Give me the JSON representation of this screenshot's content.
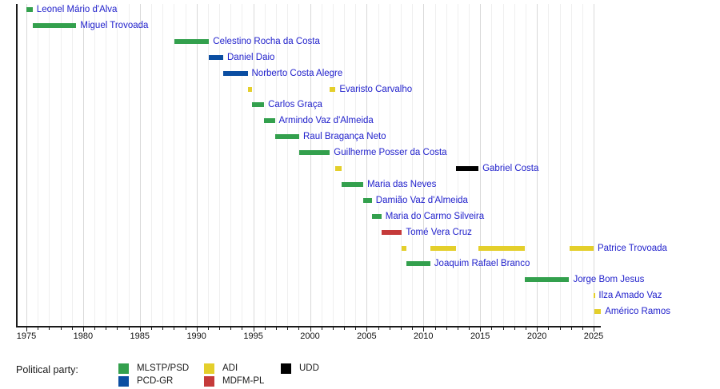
{
  "chart_data": {
    "type": "timeline",
    "title": "",
    "x_axis": {
      "start_year": 1975,
      "end_year": 2025,
      "minor_tick_interval": 1,
      "major_tick_interval": 5,
      "tick_labels": [
        "1975",
        "1980",
        "1985",
        "1990",
        "1995",
        "2000",
        "2005",
        "2010",
        "2015",
        "2020",
        "2025"
      ],
      "grid": "vertical yearly, darker every 5 years"
    },
    "party_colors": {
      "MLSTP/PSD": "#33a04d",
      "PCD-GR": "#0b4ea2",
      "ADI": "#e4cf2b",
      "MDFM-PL": "#c53a3a",
      "UDD": "#000000"
    },
    "people": [
      {
        "name": "Leonel Mário d'Alva",
        "terms": [
          {
            "start": 1975.0,
            "end": 1975.55,
            "party": "MLSTP/PSD"
          }
        ]
      },
      {
        "name": "Miguel Trovoada",
        "terms": [
          {
            "start": 1975.55,
            "end": 1979.4,
            "party": "MLSTP/PSD"
          }
        ]
      },
      {
        "name": "Celestino Rocha da Costa",
        "terms": [
          {
            "start": 1988.05,
            "end": 1991.1,
            "party": "MLSTP/PSD"
          }
        ]
      },
      {
        "name": "Daniel Daio",
        "terms": [
          {
            "start": 1991.1,
            "end": 1992.35,
            "party": "PCD-GR"
          }
        ]
      },
      {
        "name": "Norberto Costa Alegre",
        "terms": [
          {
            "start": 1992.35,
            "end": 1994.5,
            "party": "PCD-GR"
          }
        ]
      },
      {
        "name": "Evaristo Carvalho",
        "terms": [
          {
            "start": 1994.5,
            "end": 1994.85,
            "party": "ADI"
          },
          {
            "start": 2001.75,
            "end": 2002.25,
            "party": "ADI"
          }
        ]
      },
      {
        "name": "Carlos Graça",
        "terms": [
          {
            "start": 1994.85,
            "end": 1995.95,
            "party": "MLSTP/PSD"
          }
        ]
      },
      {
        "name": "Armindo Vaz d'Almeida",
        "terms": [
          {
            "start": 1995.95,
            "end": 1996.9,
            "party": "MLSTP/PSD"
          }
        ]
      },
      {
        "name": "Raul Bragança Neto",
        "terms": [
          {
            "start": 1996.9,
            "end": 1999.05,
            "party": "MLSTP/PSD"
          }
        ]
      },
      {
        "name": "Guilherme Posser da Costa",
        "terms": [
          {
            "start": 1999.05,
            "end": 2001.75,
            "party": "MLSTP/PSD"
          }
        ]
      },
      {
        "name": "Gabriel Costa",
        "terms": [
          {
            "start": 2002.25,
            "end": 2002.8,
            "party": "ADI"
          },
          {
            "start": 2012.9,
            "end": 2014.85,
            "party": "UDD"
          }
        ]
      },
      {
        "name": "Maria das Neves",
        "terms": [
          {
            "start": 2002.8,
            "end": 2004.7,
            "party": "MLSTP/PSD"
          }
        ]
      },
      {
        "name": "Damião Vaz d'Almeida",
        "terms": [
          {
            "start": 2004.7,
            "end": 2005.45,
            "party": "MLSTP/PSD"
          }
        ]
      },
      {
        "name": "Maria do Carmo Silveira",
        "terms": [
          {
            "start": 2005.45,
            "end": 2006.3,
            "party": "MLSTP/PSD"
          }
        ]
      },
      {
        "name": "Tomé Vera Cruz",
        "terms": [
          {
            "start": 2006.3,
            "end": 2008.1,
            "party": "MDFM-PL"
          }
        ]
      },
      {
        "name": "Patrice Trovoada",
        "terms": [
          {
            "start": 2008.1,
            "end": 2008.5,
            "party": "ADI"
          },
          {
            "start": 2010.6,
            "end": 2012.9,
            "party": "ADI"
          },
          {
            "start": 2014.85,
            "end": 2018.95,
            "party": "ADI"
          },
          {
            "start": 2022.85,
            "end": 2025.0,
            "party": "ADI"
          }
        ]
      },
      {
        "name": "Joaquim Rafael Branco",
        "terms": [
          {
            "start": 2008.5,
            "end": 2010.6,
            "party": "MLSTP/PSD"
          }
        ]
      },
      {
        "name": "Jorge Bom Jesus",
        "terms": [
          {
            "start": 2018.95,
            "end": 2022.85,
            "party": "MLSTP/PSD"
          }
        ]
      },
      {
        "name": "Ilza Amado Vaz",
        "terms": [
          {
            "start": 2024.98,
            "end": 2025.1,
            "party": "ADI"
          }
        ]
      },
      {
        "name": "Américo Ramos",
        "terms": [
          {
            "start": 2025.05,
            "end": 2025.65,
            "party": "ADI"
          }
        ]
      }
    ]
  },
  "legend": {
    "title": "Political party:",
    "entries": [
      {
        "name": "MLSTP/PSD",
        "color": "#33a04d",
        "col": 0,
        "row": 0
      },
      {
        "name": "PCD-GR",
        "color": "#0b4ea2",
        "col": 0,
        "row": 1
      },
      {
        "name": "ADI",
        "color": "#e4cf2b",
        "col": 1,
        "row": 0
      },
      {
        "name": "MDFM-PL",
        "color": "#c53a3a",
        "col": 1,
        "row": 1
      },
      {
        "name": "UDD",
        "color": "#000000",
        "col": 2,
        "row": 0
      }
    ]
  },
  "label_text_color": "#2222cc"
}
